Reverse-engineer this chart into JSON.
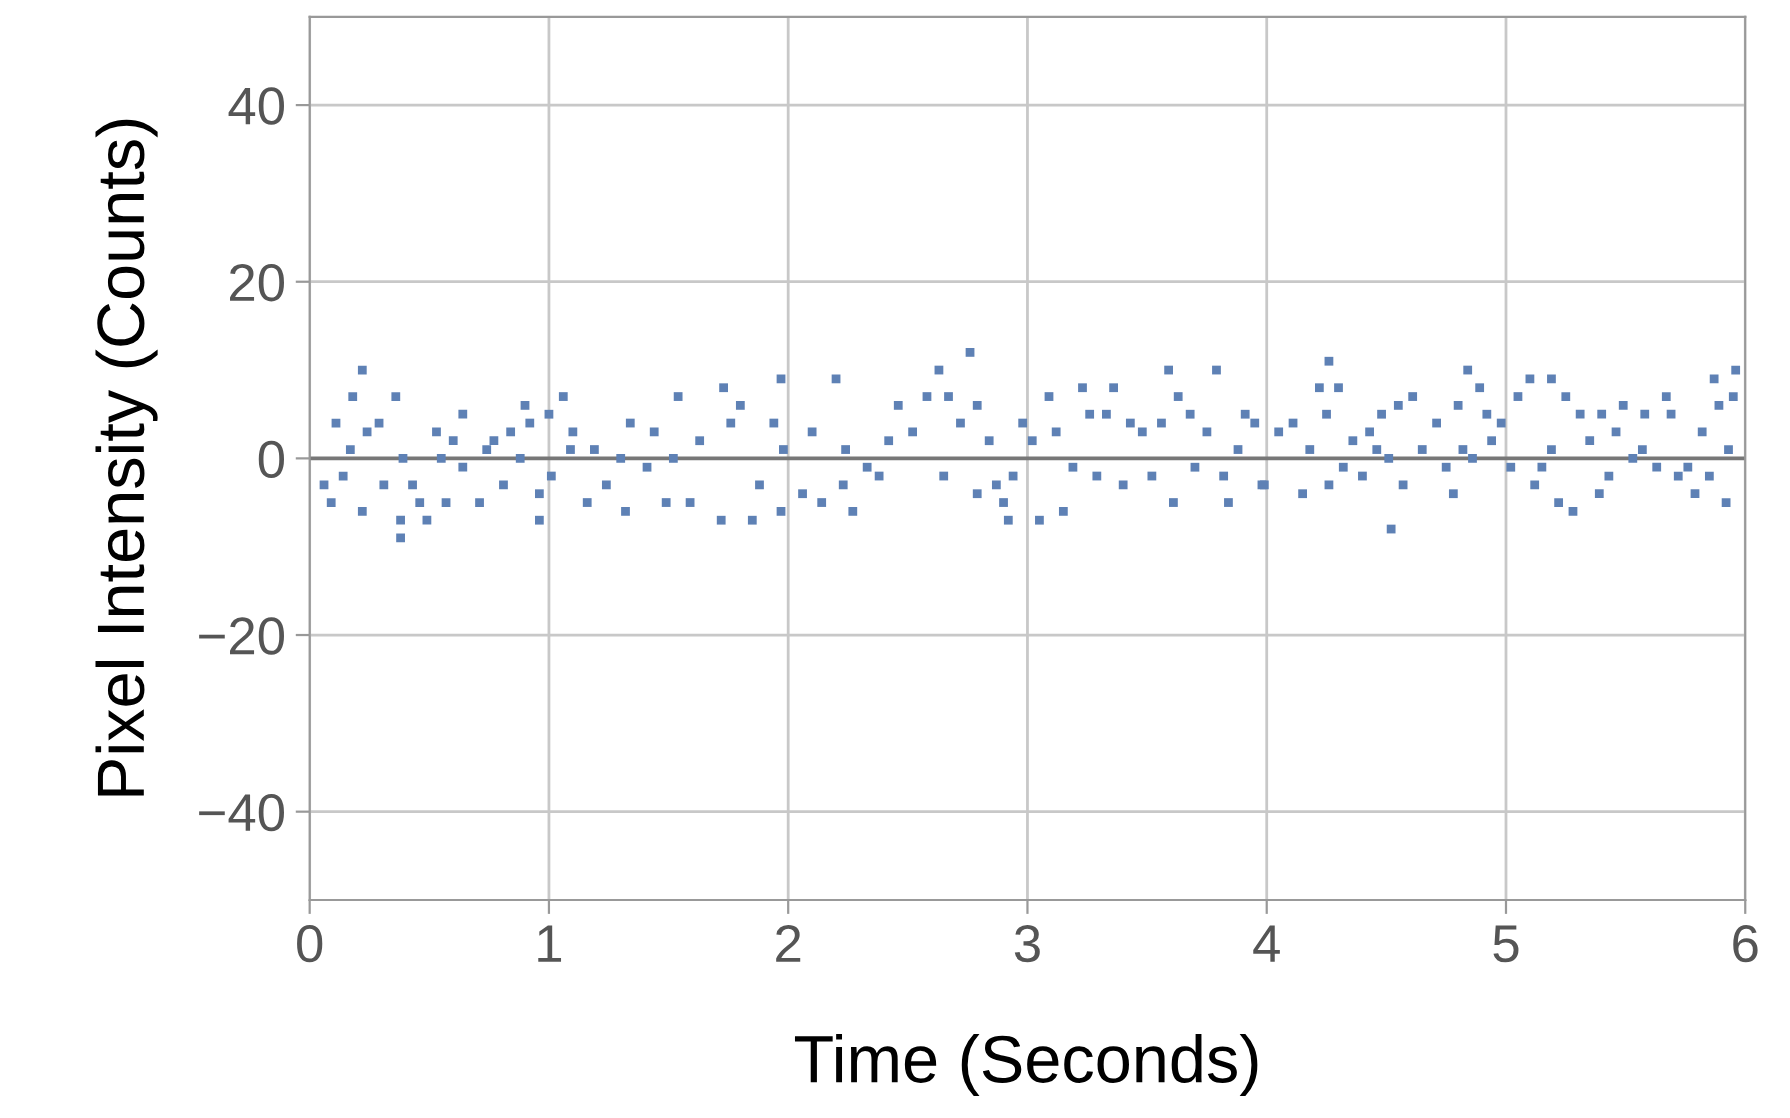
{
  "chart_data": {
    "type": "scatter",
    "xlabel": "Time (Seconds)",
    "ylabel": "Pixel Intensity (Counts)",
    "xlim": [
      0,
      6
    ],
    "ylim": [
      -50,
      50
    ],
    "xticks": [
      0,
      1,
      2,
      3,
      4,
      5,
      6
    ],
    "yticks": [
      {
        "value": -40,
        "label": "−40"
      },
      {
        "value": -20,
        "label": "−20"
      },
      0,
      20,
      40
    ],
    "grid": true,
    "marker": "square",
    "ref_lines": [
      {
        "axis": "y",
        "value": 0,
        "color": "#777777"
      }
    ],
    "series": [
      {
        "color": "#5e81b5",
        "x": [
          0.06,
          0.09,
          0.11,
          0.14,
          0.17,
          0.18,
          0.22,
          0.22,
          0.24,
          0.29,
          0.31,
          0.36,
          0.38,
          0.39,
          0.43,
          0.38,
          0.46,
          0.49,
          0.53,
          0.55,
          0.57,
          0.6,
          0.64,
          0.64,
          0.71,
          0.74,
          0.77,
          0.81,
          0.84,
          0.88,
          0.9,
          0.92,
          0.96,
          0.96,
          1.0,
          1.01,
          1.06,
          1.09,
          1.1,
          1.16,
          1.19,
          1.24,
          1.3,
          1.32,
          1.34,
          1.41,
          1.44,
          1.49,
          1.52,
          1.54,
          1.59,
          1.63,
          1.72,
          1.73,
          1.76,
          1.8,
          1.85,
          1.88,
          1.94,
          1.98,
          1.97,
          1.97,
          2.06,
          2.1,
          2.14,
          2.2,
          2.23,
          2.24,
          2.27,
          2.33,
          2.38,
          2.42,
          2.46,
          2.52,
          2.58,
          2.63,
          2.65,
          2.67,
          2.72,
          2.76,
          2.79,
          2.79,
          2.84,
          2.87,
          2.9,
          2.92,
          2.94,
          2.98,
          3.02,
          3.05,
          3.09,
          3.12,
          3.15,
          3.19,
          3.23,
          3.26,
          3.29,
          3.33,
          3.36,
          3.4,
          3.43,
          3.48,
          3.52,
          3.56,
          3.59,
          3.61,
          3.63,
          3.68,
          3.7,
          3.75,
          3.79,
          3.82,
          3.84,
          3.88,
          3.91,
          3.95,
          3.98,
          3.99,
          4.05,
          4.11,
          4.15,
          4.18,
          4.22,
          4.25,
          4.26,
          4.26,
          4.3,
          4.32,
          4.36,
          4.4,
          4.43,
          4.46,
          4.48,
          4.51,
          4.52,
          4.55,
          4.57,
          4.61,
          4.65,
          4.71,
          4.75,
          4.78,
          4.8,
          4.82,
          4.84,
          4.86,
          4.89,
          4.92,
          4.94,
          4.98,
          5.02,
          5.05,
          5.1,
          5.12,
          5.15,
          5.19,
          5.19,
          5.22,
          5.25,
          5.28,
          5.31,
          5.35,
          5.39,
          5.4,
          5.43,
          5.46,
          5.49,
          5.53,
          5.57,
          5.58,
          5.63,
          5.67,
          5.69,
          5.72,
          5.76,
          5.79,
          5.82,
          5.85,
          5.87,
          5.89,
          5.92,
          5.93,
          5.95,
          5.96
        ],
        "values": [
          -3,
          -5,
          4,
          -2,
          1,
          7,
          10,
          -6,
          3,
          4,
          -3,
          7,
          -7,
          0,
          -3,
          -9,
          -5,
          -7,
          3,
          0,
          -5,
          2,
          5,
          -1,
          -5,
          1,
          2,
          -3,
          3,
          0,
          6,
          4,
          -7,
          -4,
          5,
          -2,
          7,
          1,
          3,
          -5,
          1,
          -3,
          0,
          -6,
          4,
          -1,
          3,
          -5,
          0,
          7,
          -5,
          2,
          -7,
          8,
          4,
          6,
          -7,
          -3,
          4,
          1,
          9,
          -6,
          -4,
          3,
          -5,
          9,
          -3,
          1,
          -6,
          -1,
          -2,
          2,
          6,
          3,
          7,
          10,
          -2,
          7,
          4,
          12,
          6,
          -4,
          2,
          -3,
          -5,
          -7,
          -2,
          4,
          2,
          -7,
          7,
          3,
          -6,
          -1,
          8,
          5,
          -2,
          5,
          8,
          -3,
          4,
          3,
          -2,
          4,
          10,
          -5,
          7,
          5,
          -1,
          3,
          10,
          -2,
          -5,
          1,
          5,
          4,
          -3,
          -3,
          3,
          4,
          -4,
          1,
          8,
          5,
          11,
          -3,
          8,
          -1,
          2,
          -2,
          3,
          1,
          5,
          0,
          -8,
          6,
          -3,
          7,
          1,
          4,
          -1,
          -4,
          6,
          1,
          10,
          0,
          8,
          5,
          2,
          4,
          -1,
          7,
          9,
          -3,
          -1,
          9,
          1,
          -5,
          7,
          -6,
          5,
          2,
          -4,
          5,
          -2,
          3,
          6,
          0,
          1,
          5,
          -1,
          7,
          5,
          -2,
          -1,
          -4,
          3,
          -2,
          9,
          6,
          -5,
          1,
          7,
          10
        ]
      }
    ]
  }
}
